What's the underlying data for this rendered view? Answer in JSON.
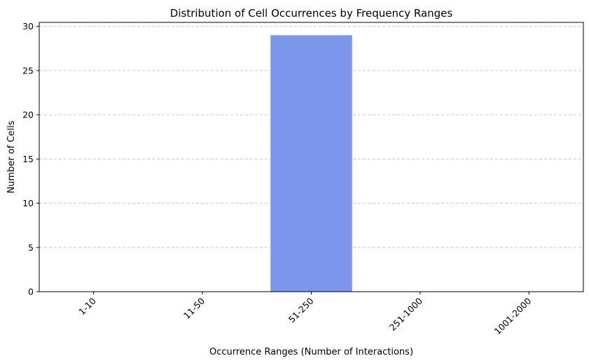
{
  "chart_data": {
    "type": "bar",
    "title": "Distribution of Cell Occurrences by Frequency Ranges",
    "xlabel": "Occurrence Ranges (Number of Interactions)",
    "ylabel": "Number of Cells",
    "categories": [
      "1-10",
      "11-50",
      "51-250",
      "251-1000",
      "1001-2000"
    ],
    "values": [
      0,
      0,
      29,
      0,
      0
    ],
    "ylim": [
      0,
      30.45
    ],
    "yticks": [
      0,
      5,
      10,
      15,
      20,
      25,
      30
    ],
    "ytick_labels": [
      "0",
      "5",
      "10",
      "15",
      "20",
      "25",
      "30"
    ],
    "grid": "y-dashed",
    "bar_color": "#7b96ea",
    "grid_color": "#c8c8c8",
    "x_tick_rotation_deg": 45
  }
}
